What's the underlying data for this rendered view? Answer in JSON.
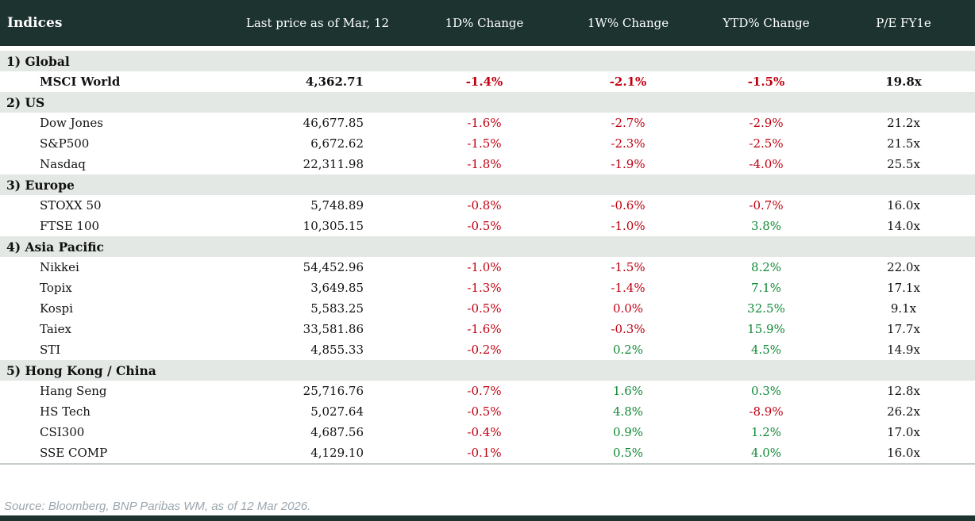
{
  "colors": {
    "header_bg": "#1c332f",
    "section_bg": "#e3e8e4",
    "negative": "#c00010",
    "positive": "#0f8a35",
    "bottom_bar": "#1c332f"
  },
  "header": {
    "columns": [
      "Indices",
      "Last price as of Mar, 12",
      "1D% Change",
      "1W% Change",
      "YTD% Change",
      "P/E FY1e"
    ]
  },
  "sections": [
    {
      "label": "1) Global",
      "rows": [
        {
          "name": "MSCI World",
          "bold": true,
          "last_price": "4,362.71",
          "changes": [
            {
              "v": "-1.4%",
              "c": "neg"
            },
            {
              "v": "-2.1%",
              "c": "neg"
            },
            {
              "v": "-1.5%",
              "c": "neg"
            }
          ],
          "pe": "19.8x"
        }
      ]
    },
    {
      "label": "2) US",
      "rows": [
        {
          "name": "Dow Jones",
          "bold": false,
          "last_price": "46,677.85",
          "changes": [
            {
              "v": "-1.6%",
              "c": "neg"
            },
            {
              "v": "-2.7%",
              "c": "neg"
            },
            {
              "v": "-2.9%",
              "c": "neg"
            }
          ],
          "pe": "21.2x"
        },
        {
          "name": "S&P500",
          "bold": false,
          "last_price": "6,672.62",
          "changes": [
            {
              "v": "-1.5%",
              "c": "neg"
            },
            {
              "v": "-2.3%",
              "c": "neg"
            },
            {
              "v": "-2.5%",
              "c": "neg"
            }
          ],
          "pe": "21.5x"
        },
        {
          "name": "Nasdaq",
          "bold": false,
          "last_price": "22,311.98",
          "changes": [
            {
              "v": "-1.8%",
              "c": "neg"
            },
            {
              "v": "-1.9%",
              "c": "neg"
            },
            {
              "v": "-4.0%",
              "c": "neg"
            }
          ],
          "pe": "25.5x"
        }
      ]
    },
    {
      "label": "3) Europe",
      "rows": [
        {
          "name": "STOXX 50",
          "bold": false,
          "last_price": "5,748.89",
          "changes": [
            {
              "v": "-0.8%",
              "c": "neg"
            },
            {
              "v": "-0.6%",
              "c": "neg"
            },
            {
              "v": "-0.7%",
              "c": "neg"
            }
          ],
          "pe": "16.0x"
        },
        {
          "name": "FTSE 100",
          "bold": false,
          "last_price": "10,305.15",
          "changes": [
            {
              "v": "-0.5%",
              "c": "neg"
            },
            {
              "v": "-1.0%",
              "c": "neg"
            },
            {
              "v": "3.8%",
              "c": "pos"
            }
          ],
          "pe": "14.0x"
        }
      ]
    },
    {
      "label": "4) Asia Pacific",
      "rows": [
        {
          "name": "Nikkei",
          "bold": false,
          "last_price": "54,452.96",
          "changes": [
            {
              "v": "-1.0%",
              "c": "neg"
            },
            {
              "v": "-1.5%",
              "c": "neg"
            },
            {
              "v": "8.2%",
              "c": "pos"
            }
          ],
          "pe": "22.0x"
        },
        {
          "name": "Topix",
          "bold": false,
          "last_price": "3,649.85",
          "changes": [
            {
              "v": "-1.3%",
              "c": "neg"
            },
            {
              "v": "-1.4%",
              "c": "neg"
            },
            {
              "v": "7.1%",
              "c": "pos"
            }
          ],
          "pe": "17.1x"
        },
        {
          "name": "Kospi",
          "bold": false,
          "last_price": "5,583.25",
          "changes": [
            {
              "v": "-0.5%",
              "c": "neg"
            },
            {
              "v": "0.0%",
              "c": "neg"
            },
            {
              "v": "32.5%",
              "c": "pos"
            }
          ],
          "pe": "9.1x"
        },
        {
          "name": "Taiex",
          "bold": false,
          "last_price": "33,581.86",
          "changes": [
            {
              "v": "-1.6%",
              "c": "neg"
            },
            {
              "v": "-0.3%",
              "c": "neg"
            },
            {
              "v": "15.9%",
              "c": "pos"
            }
          ],
          "pe": "17.7x"
        },
        {
          "name": "STI",
          "bold": false,
          "last_price": "4,855.33",
          "changes": [
            {
              "v": "-0.2%",
              "c": "neg"
            },
            {
              "v": "0.2%",
              "c": "pos"
            },
            {
              "v": "4.5%",
              "c": "pos"
            }
          ],
          "pe": "14.9x"
        }
      ]
    },
    {
      "label": "5) Hong Kong / China",
      "rows": [
        {
          "name": "Hang Seng",
          "bold": false,
          "last_price": "25,716.76",
          "changes": [
            {
              "v": "-0.7%",
              "c": "neg"
            },
            {
              "v": "1.6%",
              "c": "pos"
            },
            {
              "v": "0.3%",
              "c": "pos"
            }
          ],
          "pe": "12.8x"
        },
        {
          "name": "HS Tech",
          "bold": false,
          "last_price": "5,027.64",
          "changes": [
            {
              "v": "-0.5%",
              "c": "neg"
            },
            {
              "v": "4.8%",
              "c": "pos"
            },
            {
              "v": "-8.9%",
              "c": "neg"
            }
          ],
          "pe": "26.2x"
        },
        {
          "name": "CSI300",
          "bold": false,
          "last_price": "4,687.56",
          "changes": [
            {
              "v": "-0.4%",
              "c": "neg"
            },
            {
              "v": "0.9%",
              "c": "pos"
            },
            {
              "v": "1.2%",
              "c": "pos"
            }
          ],
          "pe": "17.0x"
        },
        {
          "name": "SSE COMP",
          "bold": false,
          "last_price": "4,129.10",
          "changes": [
            {
              "v": "-0.1%",
              "c": "neg"
            },
            {
              "v": "0.5%",
              "c": "pos"
            },
            {
              "v": "4.0%",
              "c": "pos"
            }
          ],
          "pe": "16.0x"
        }
      ]
    }
  ],
  "footer": {
    "source": "Source: Bloomberg, BNP Paribas WM, as of 12 Mar 2026."
  }
}
